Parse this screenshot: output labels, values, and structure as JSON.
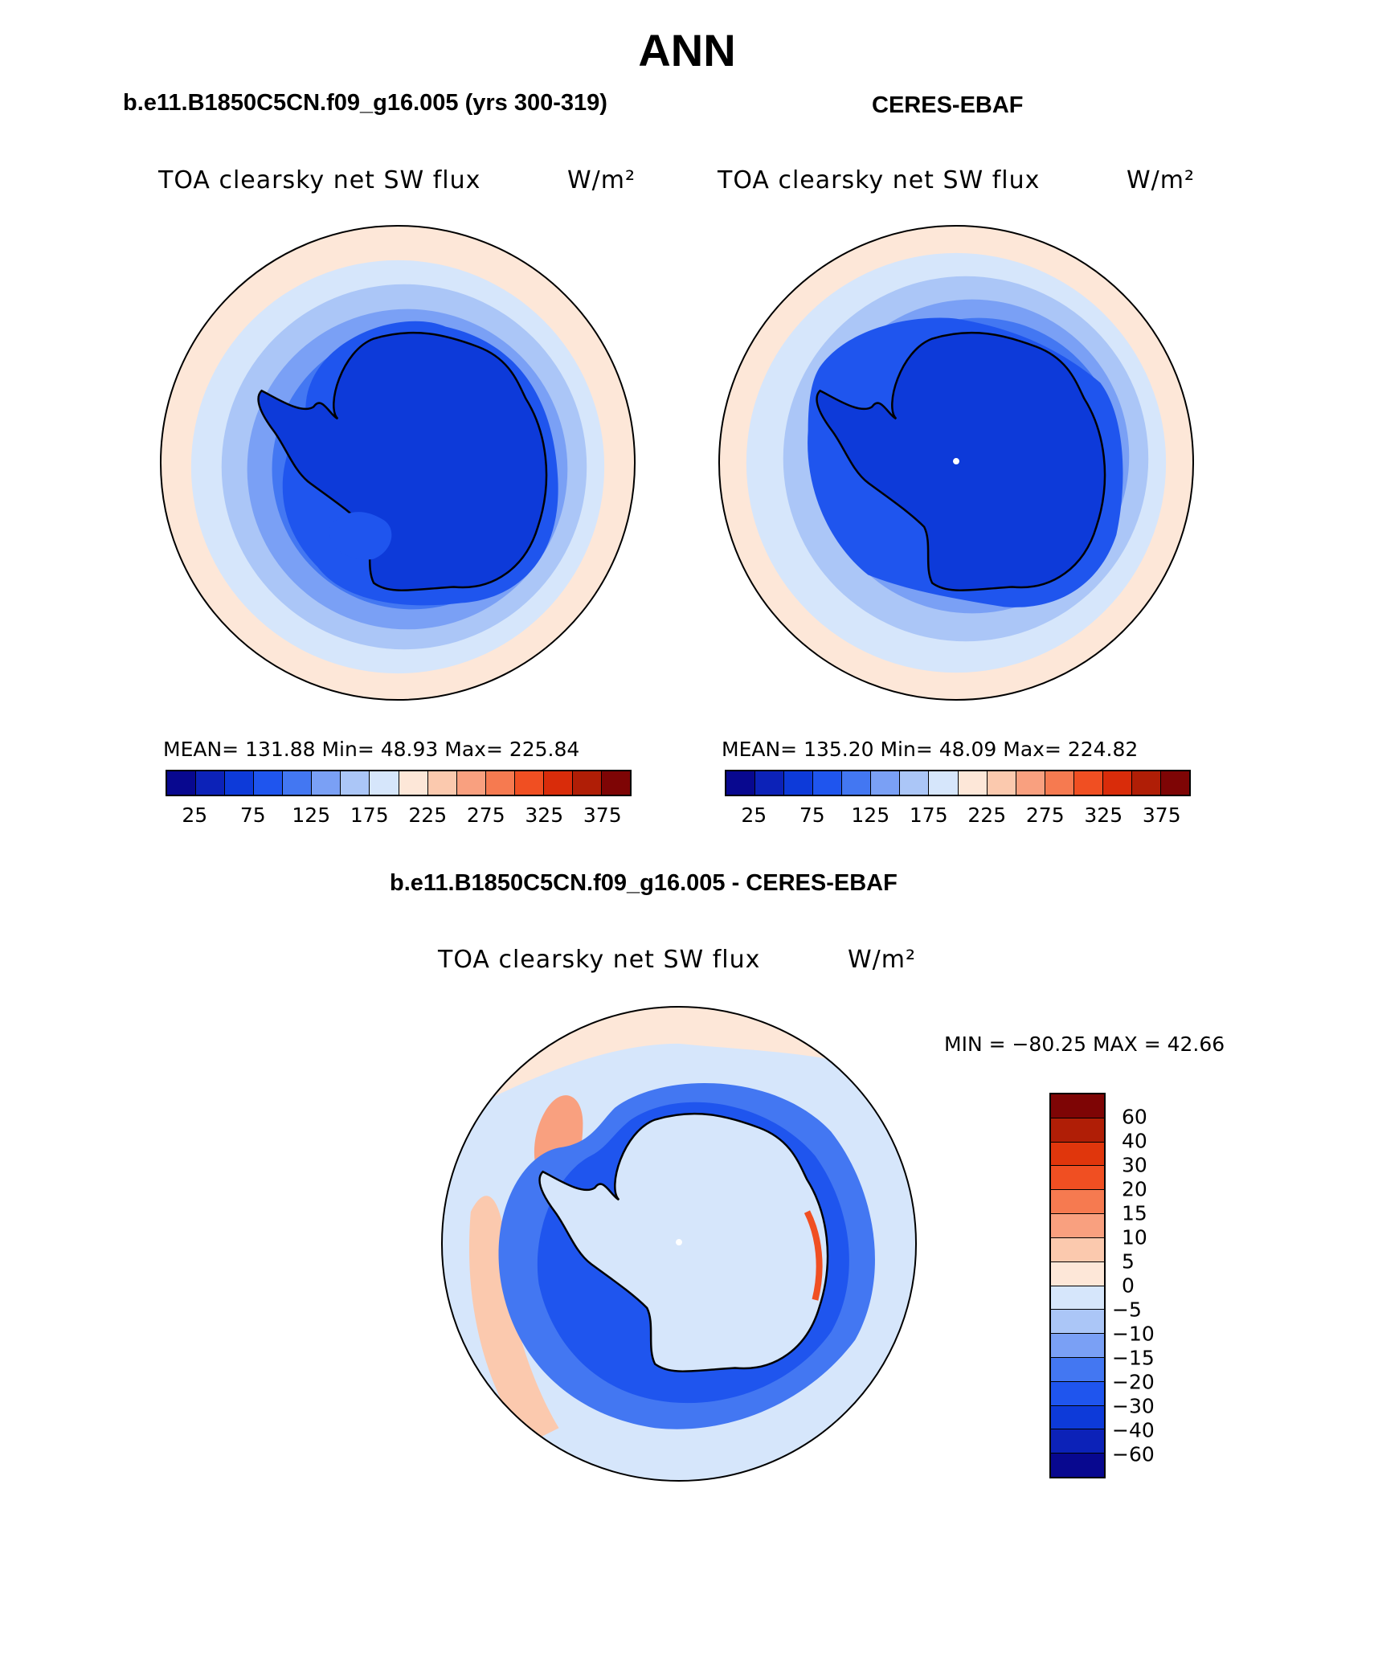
{
  "title": "ANN",
  "panels": [
    {
      "subtitle": "b.e11.B1850C5CN.f09_g16.005 (yrs 300-319)",
      "variable": "TOA clearsky net SW flux",
      "units": "W/m²",
      "stats": "MEAN= 131.88   Min=  48.93   Max= 225.84"
    },
    {
      "subtitle": "CERES-EBAF",
      "variable": "TOA clearsky net SW flux",
      "units": "W/m²",
      "stats": "MEAN= 135.20   Min=  48.09   Max= 224.82"
    }
  ],
  "diff_panel": {
    "subtitle": "b.e11.B1850C5CN.f09_g16.005 - CERES-EBAF",
    "variable": "TOA clearsky net SW flux",
    "units": "W/m²",
    "stats": "MIN = −80.25 MAX =   42.66"
  },
  "colorbar_main": {
    "colors": [
      "#08088f",
      "#0c22b8",
      "#0d3ad9",
      "#1f55ee",
      "#4377f2",
      "#7aa0f5",
      "#abc6f7",
      "#d6e6fb",
      "#fde7d8",
      "#fbc9ae",
      "#f9a07f",
      "#f67a50",
      "#f04f22",
      "#d92c0a",
      "#b01e06",
      "#7e0505"
    ],
    "labels": [
      "25",
      "75",
      "125",
      "175",
      "225",
      "275",
      "325",
      "375"
    ]
  },
  "colorbar_diff": {
    "colors_top_to_bottom": [
      "#7e0505",
      "#b01e06",
      "#e0360c",
      "#f04f22",
      "#f67a50",
      "#f9a07f",
      "#fbc9ae",
      "#fde7d8",
      "#d6e6fb",
      "#abc6f7",
      "#7aa0f5",
      "#4377f2",
      "#1f55ee",
      "#0d3ad9",
      "#0c22b8",
      "#08088f"
    ],
    "labels": [
      "60",
      "40",
      "30",
      "20",
      "15",
      "10",
      "5",
      "0",
      "−5",
      "−10",
      "−15",
      "−20",
      "−30",
      "−40",
      "−60"
    ]
  }
}
